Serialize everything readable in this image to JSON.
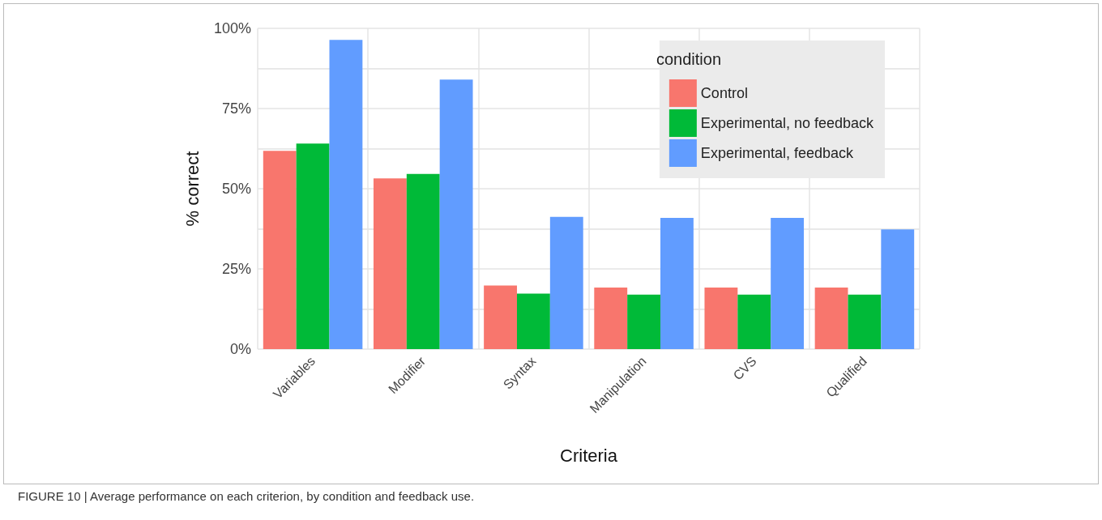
{
  "chart_data": {
    "type": "bar",
    "xlabel": "Criteria",
    "ylabel": "% correct",
    "legend_title": "condition",
    "categories": [
      "Variables",
      "Modifier",
      "Syntax",
      "Manipulation",
      "CVS",
      "Qualified"
    ],
    "series": [
      {
        "name": "Control",
        "color": "#f8766d",
        "values": [
          61.8,
          53.2,
          19.8,
          19.2,
          19.2,
          19.2
        ]
      },
      {
        "name": "Experimental, no feedback",
        "color": "#00ba38",
        "values": [
          64.1,
          54.6,
          17.3,
          17.0,
          17.0,
          17.0
        ]
      },
      {
        "name": "Experimental, feedback",
        "color": "#619cff",
        "values": [
          96.4,
          84.0,
          41.2,
          40.9,
          40.9,
          37.3
        ]
      }
    ],
    "ylim": [
      0,
      100
    ],
    "yticks": [
      {
        "value": 0,
        "label": "0%"
      },
      {
        "value": 12.5,
        "label": null
      },
      {
        "value": 25,
        "label": "25%"
      },
      {
        "value": 37.5,
        "label": null
      },
      {
        "value": 50,
        "label": "50%"
      },
      {
        "value": 62.5,
        "label": null
      },
      {
        "value": 75,
        "label": "75%"
      },
      {
        "value": 87.5,
        "label": null
      },
      {
        "value": 100,
        "label": "100%"
      }
    ],
    "grid": true,
    "legend": "top right",
    "annotations": [
      "FIGURE 10 | Average performance on each criterion, by condition and feedback use."
    ]
  }
}
